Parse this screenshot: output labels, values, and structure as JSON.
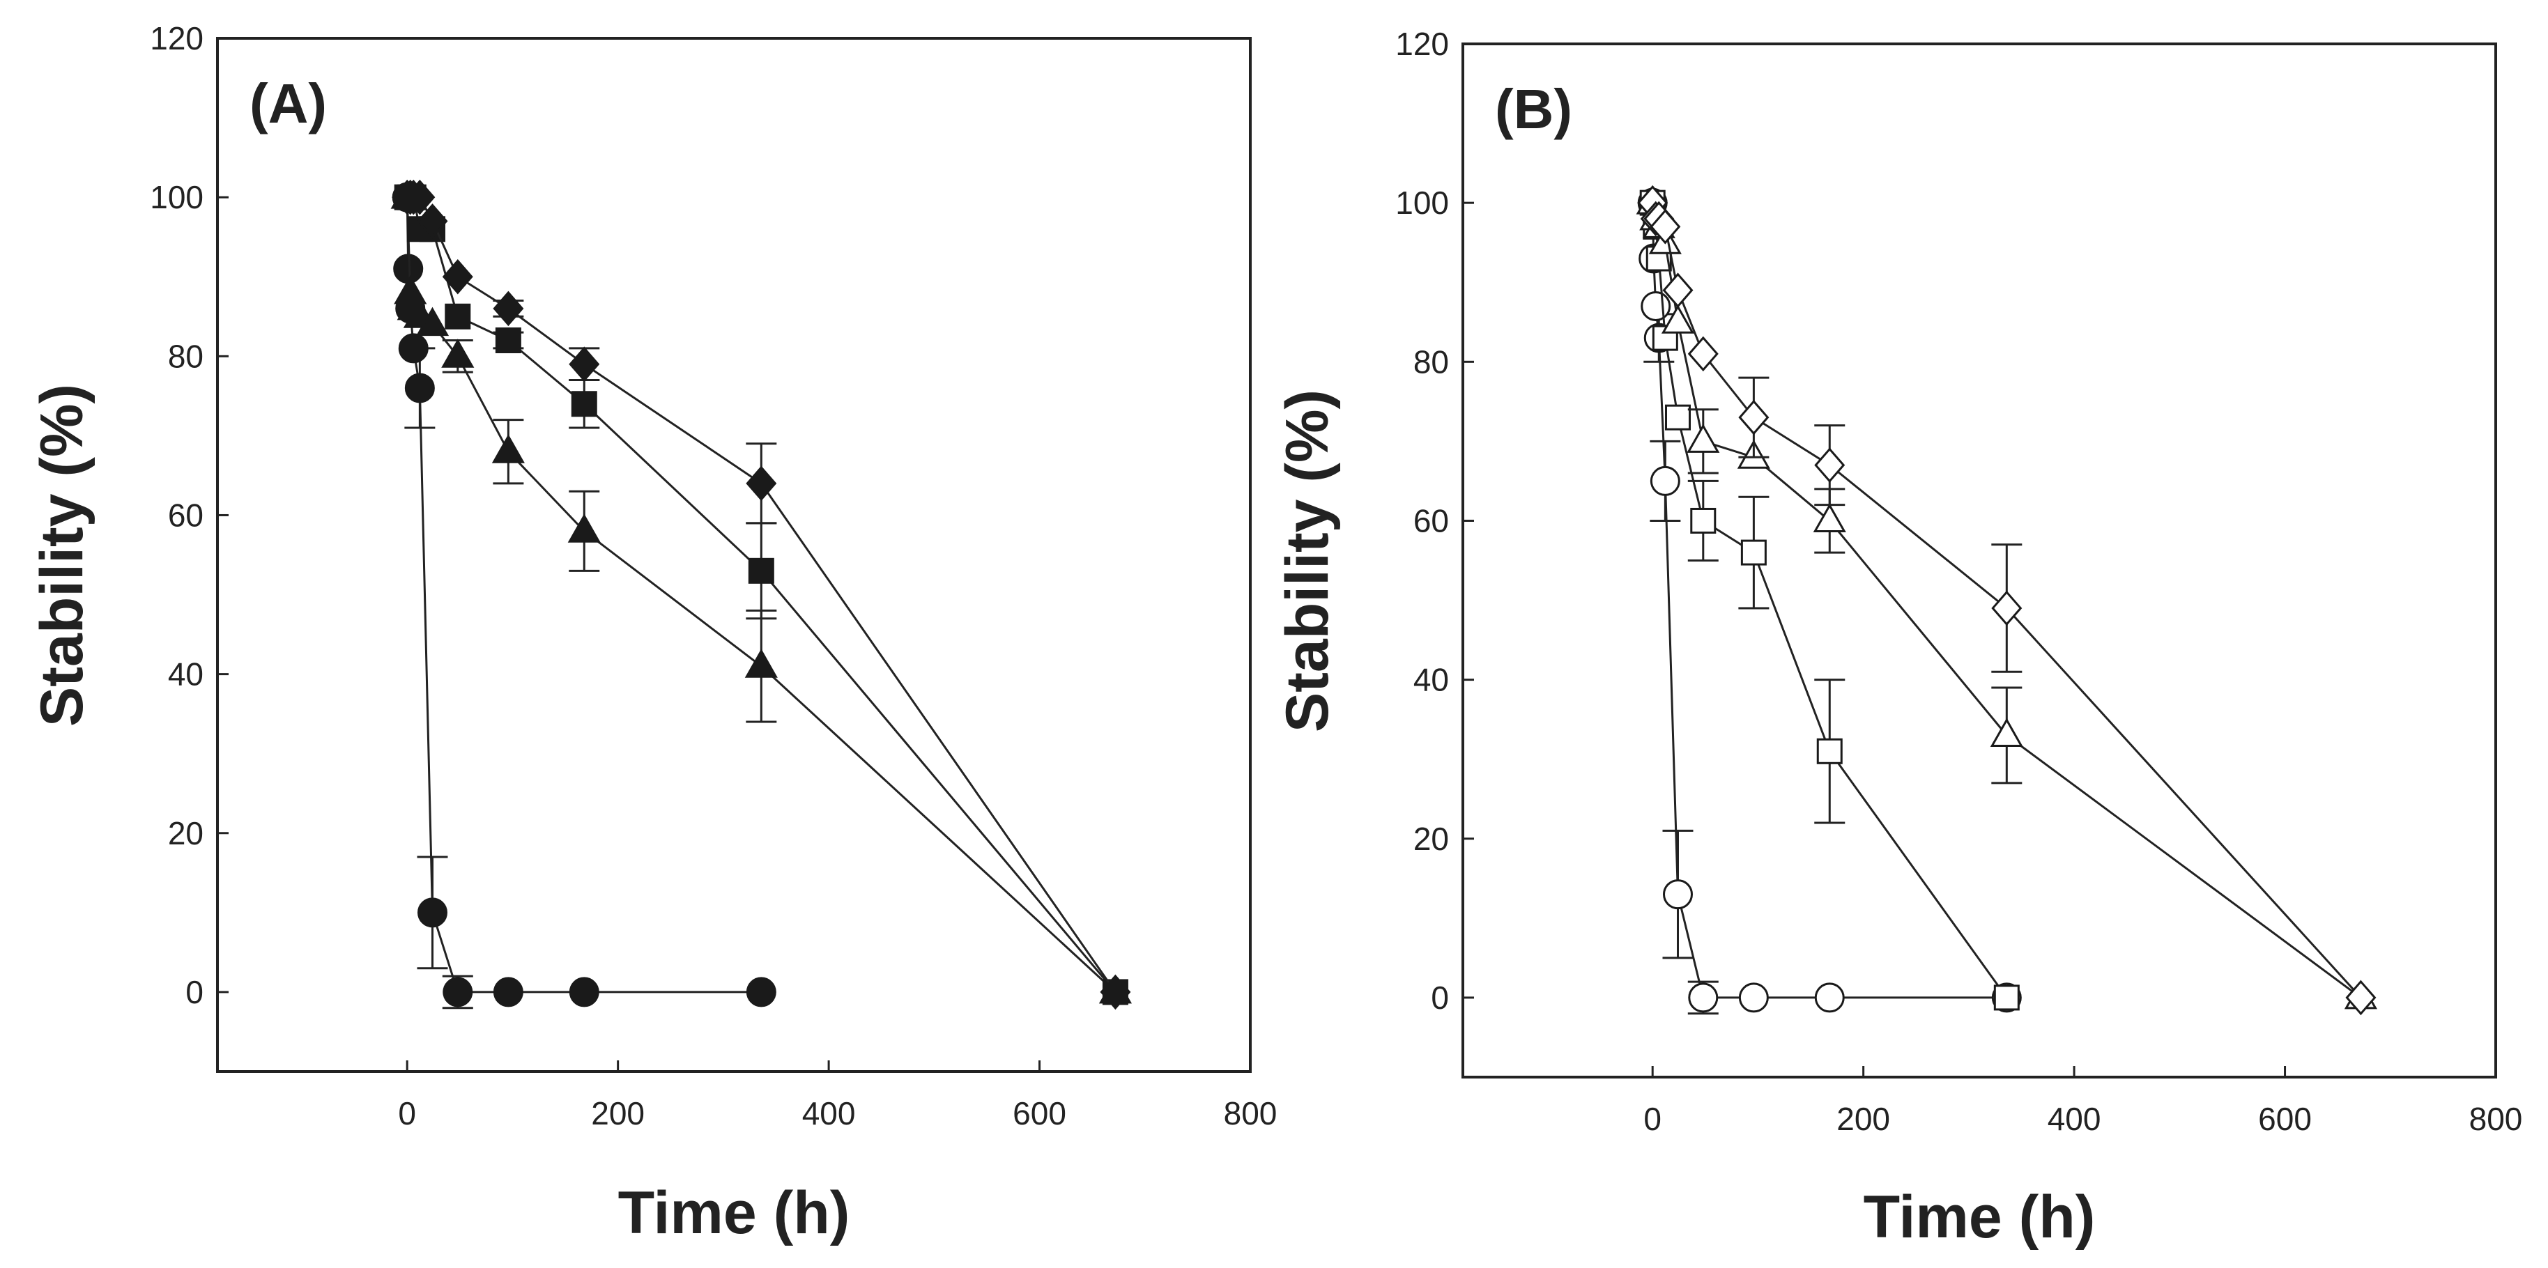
{
  "chart_data": [
    {
      "type": "line",
      "panel_label": "(A)",
      "xlabel": "Time (h)",
      "ylabel": "Stability (%)",
      "xlim": [
        -180,
        800
      ],
      "ylim": [
        -10,
        120
      ],
      "xticks": [
        0,
        200,
        400,
        600,
        800
      ],
      "yticks": [
        0,
        20,
        40,
        60,
        80,
        100,
        120
      ],
      "series": [
        {
          "name": "filled-circle",
          "marker": "circle",
          "fill": "#1a1a1a",
          "x": [
            0,
            1,
            3,
            6,
            12,
            24,
            48,
            96,
            168,
            336
          ],
          "y": [
            100,
            91,
            86,
            81,
            76,
            10,
            0,
            0,
            0,
            0
          ],
          "err": [
            0,
            0,
            0,
            0,
            5,
            7,
            2,
            0,
            0,
            0
          ]
        },
        {
          "name": "filled-triangle",
          "marker": "triangle",
          "fill": "#1a1a1a",
          "x": [
            0,
            3,
            6,
            12,
            24,
            48,
            96,
            168,
            336,
            672
          ],
          "y": [
            100,
            88,
            86,
            85,
            84,
            80,
            68,
            58,
            41,
            0
          ],
          "err": [
            0,
            0,
            0,
            0,
            0,
            2,
            4,
            5,
            7,
            0
          ]
        },
        {
          "name": "filled-square",
          "marker": "square",
          "fill": "#1a1a1a",
          "x": [
            0,
            3,
            6,
            12,
            24,
            48,
            96,
            168,
            336,
            672
          ],
          "y": [
            100,
            100,
            100,
            96,
            96,
            85,
            82,
            74,
            53,
            0
          ],
          "err": [
            0,
            0,
            0,
            0,
            0,
            0,
            1,
            3,
            6,
            0
          ]
        },
        {
          "name": "filled-diamond",
          "marker": "diamond",
          "fill": "#1a1a1a",
          "x": [
            0,
            3,
            6,
            12,
            24,
            48,
            96,
            168,
            336,
            672
          ],
          "y": [
            100,
            100,
            100,
            100,
            97,
            90,
            86,
            79,
            64,
            0
          ],
          "err": [
            0,
            0,
            0,
            0,
            0,
            0,
            1,
            2,
            5,
            0
          ]
        }
      ]
    },
    {
      "type": "line",
      "panel_label": "(B)",
      "xlabel": "Time (h)",
      "ylabel": "Stability (%)",
      "xlim": [
        -180,
        800
      ],
      "ylim": [
        -10,
        120
      ],
      "xticks": [
        0,
        200,
        400,
        600,
        800
      ],
      "yticks": [
        0,
        20,
        40,
        60,
        80,
        100,
        120
      ],
      "series": [
        {
          "name": "open-circle",
          "marker": "circle",
          "fill": "#ffffff",
          "x": [
            0,
            1,
            3,
            6,
            12,
            24,
            48,
            96,
            168,
            336
          ],
          "y": [
            100,
            93,
            87,
            83,
            65,
            13,
            0,
            0,
            0,
            0
          ],
          "err": [
            0,
            0,
            0,
            3,
            5,
            8,
            2,
            0,
            0,
            0
          ]
        },
        {
          "name": "open-square",
          "marker": "square",
          "fill": "#ffffff",
          "x": [
            0,
            3,
            6,
            12,
            24,
            48,
            96,
            168,
            336
          ],
          "y": [
            100,
            97,
            93,
            83,
            73,
            60,
            56,
            31,
            0
          ],
          "err": [
            0,
            0,
            0,
            0,
            0,
            5,
            7,
            9,
            0
          ]
        },
        {
          "name": "open-triangle",
          "marker": "triangle",
          "fill": "#ffffff",
          "x": [
            0,
            3,
            6,
            12,
            24,
            48,
            96,
            168,
            336,
            672
          ],
          "y": [
            100,
            98,
            97,
            95,
            85,
            70,
            68,
            60,
            33,
            0
          ],
          "err": [
            0,
            0,
            0,
            0,
            0,
            4,
            0,
            4,
            6,
            0
          ]
        },
        {
          "name": "open-diamond",
          "marker": "diamond",
          "fill": "#ffffff",
          "x": [
            0,
            3,
            6,
            12,
            24,
            48,
            96,
            168,
            336,
            672
          ],
          "y": [
            100,
            98,
            98,
            97,
            89,
            81,
            73,
            67,
            49,
            0
          ],
          "err": [
            0,
            0,
            0,
            0,
            0,
            0,
            5,
            5,
            8,
            0
          ]
        }
      ]
    }
  ]
}
